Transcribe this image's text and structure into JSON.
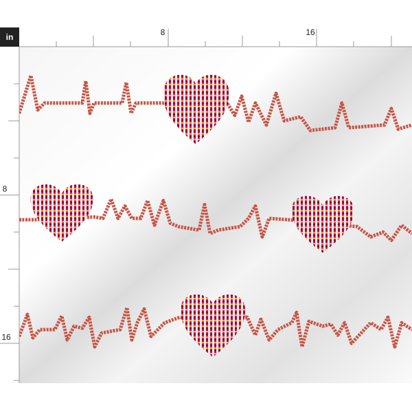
{
  "ruler": {
    "unit": "in",
    "top_labels": [
      "8",
      "16"
    ],
    "left_labels": [
      "8",
      "16"
    ]
  }
}
